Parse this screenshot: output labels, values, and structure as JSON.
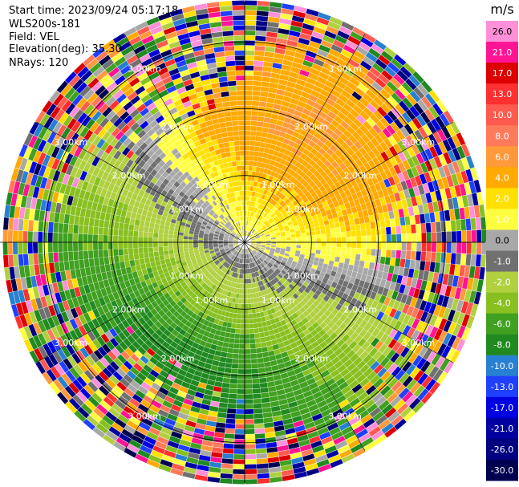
{
  "info": {
    "start_time": "Start time: 2023/09/24 05:17:18",
    "instrument": "WLS200s-181",
    "field": "Field: VEL",
    "elevation": "Elevation(deg): 35.30",
    "nrays": "NRays: 120"
  },
  "chart_data": {
    "type": "heatmap",
    "projection": "polar-ppi",
    "field": "VEL",
    "nrays": 120,
    "elevation_deg": 35.3,
    "range_rings_km": [
      1.0,
      2.0,
      3.0
    ],
    "max_range_km": 3.6,
    "ring_labels": [
      "1.00km",
      "2.00km",
      "3.00km"
    ],
    "radials_deg": [
      0,
      30,
      60,
      90,
      120,
      150,
      180,
      210,
      240,
      270,
      300,
      330
    ],
    "colorbar": {
      "unit": "m/s",
      "levels": [
        26.0,
        21.0,
        17.0,
        13.0,
        10.0,
        8.0,
        6.0,
        4.0,
        2.0,
        1.0,
        0.0,
        -1.0,
        -2.0,
        -4.0,
        -6.0,
        -8.0,
        -10.0,
        -13.0,
        -17.0,
        -21.0,
        -26.0,
        -30.0
      ],
      "tick_labels": [
        "26.0",
        "21.0",
        "17.0",
        "13.0",
        "10.0",
        "8.0",
        "6.0",
        "4.0",
        "2.0",
        "1.0",
        "0.0",
        "-1.0",
        "-2.0",
        "-4.0",
        "-6.0",
        "-8.0",
        "-10.0",
        "-13.0",
        "-17.0",
        "-21.0",
        "-26.0",
        "-30.0"
      ],
      "colors": [
        "#ff8fd8",
        "#ff1493",
        "#dc0000",
        "#ff3030",
        "#ff5a4e",
        "#ff7a5a",
        "#ff9a3a",
        "#ffaa00",
        "#ffe000",
        "#ffff40",
        "#a8a8a8",
        "#707070",
        "#b0d040",
        "#88c020",
        "#40a020",
        "#208a20",
        "#2880d0",
        "#2040ff",
        "#0000e0",
        "#0000a0",
        "#000080",
        "#000050"
      ]
    }
  }
}
